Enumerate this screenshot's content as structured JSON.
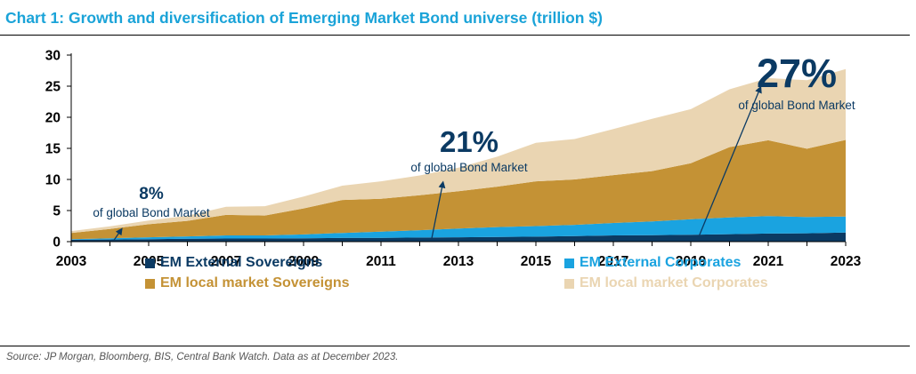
{
  "title": "Chart 1: Growth and diversification of Emerging Market Bond universe (trillion $)",
  "source": "Source: JP Morgan, Bloomberg, BIS, Central Bank Watch. Data as at December 2023.",
  "chart_data": {
    "type": "area",
    "stacked": true,
    "title": "Chart 1: Growth and diversification of Emerging Market Bond universe (trillion $)",
    "xlabel": "",
    "ylabel": "",
    "x": [
      2003,
      2004,
      2005,
      2006,
      2007,
      2008,
      2009,
      2010,
      2011,
      2012,
      2013,
      2014,
      2015,
      2016,
      2017,
      2018,
      2019,
      2020,
      2021,
      2022,
      2023
    ],
    "x_ticks": [
      "2003",
      "2005",
      "2007",
      "2009",
      "2011",
      "2013",
      "2015",
      "2017",
      "2019",
      "2021",
      "2023"
    ],
    "y_ticks": [
      "0",
      "5",
      "10",
      "15",
      "20",
      "25",
      "30"
    ],
    "xlim": [
      2003,
      2023
    ],
    "ylim": [
      0,
      30
    ],
    "grid": false,
    "legend_position": "bottom",
    "series": [
      {
        "name": "EM External Sovereigns",
        "color": "#0b3a63",
        "values": [
          0.3,
          0.35,
          0.4,
          0.45,
          0.5,
          0.5,
          0.55,
          0.6,
          0.6,
          0.65,
          0.7,
          0.75,
          0.8,
          0.9,
          1.0,
          1.05,
          1.1,
          1.2,
          1.3,
          1.35,
          1.45
        ]
      },
      {
        "name": "EM External Corporates",
        "color": "#1aa3e0",
        "values": [
          0.1,
          0.2,
          0.3,
          0.4,
          0.5,
          0.5,
          0.6,
          0.8,
          1.0,
          1.2,
          1.4,
          1.6,
          1.7,
          1.8,
          2.0,
          2.2,
          2.5,
          2.7,
          2.8,
          2.6,
          2.6
        ]
      },
      {
        "name": "EM local market Sovereigns",
        "color": "#c49235",
        "values": [
          1.0,
          1.5,
          2.1,
          2.5,
          3.3,
          3.2,
          4.2,
          5.3,
          5.3,
          5.6,
          6.0,
          6.5,
          7.2,
          7.3,
          7.7,
          8.1,
          9.0,
          11.3,
          12.2,
          11.0,
          12.3
        ]
      },
      {
        "name": "EM local market Corporates",
        "color": "#ead5b2",
        "values": [
          0.3,
          0.4,
          0.6,
          0.8,
          1.3,
          1.5,
          1.9,
          2.3,
          2.8,
          3.2,
          3.8,
          4.8,
          6.2,
          6.5,
          7.4,
          8.4,
          8.7,
          9.3,
          10.0,
          11.0,
          11.4
        ]
      }
    ],
    "annotations": [
      {
        "pct": "8%",
        "text": "of global Bond Market",
        "arrow_from": [
          2004.1,
          0.2
        ],
        "arrow_to": [
          2004.3,
          2.0
        ]
      },
      {
        "pct": "21%",
        "text": "of global Bond Market",
        "arrow_from": [
          2012.3,
          0.2
        ],
        "arrow_to": [
          2012.6,
          9.5
        ]
      },
      {
        "pct": "27%",
        "text": "of global Bond Market",
        "arrow_from": [
          2019.2,
          0.7
        ],
        "arrow_to": [
          2020.8,
          24.8
        ]
      }
    ]
  }
}
